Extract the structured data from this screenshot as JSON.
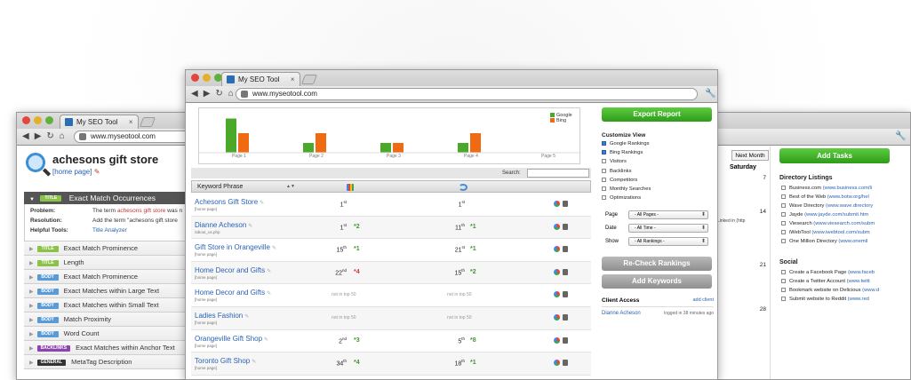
{
  "left_window": {
    "tab_title": "My SEO Tool",
    "url": "www.myseotool.com",
    "store_title": "achesons gift store",
    "store_link": "[home page]",
    "open_issue": {
      "badge": "TITLE",
      "title": "Exact Match Occurrences",
      "problem_label": "Problem:",
      "problem_pre": "The term ",
      "problem_term": "achesons gift store",
      "problem_post": " was n",
      "resolution_label": "Resolution:",
      "resolution": "Add the term \"achesons gift store",
      "tools_label": "Helpful Tools:",
      "tool": "Title Analyzer"
    },
    "issues": [
      {
        "badge": "TITLE",
        "type": "title",
        "label": "Exact Match Prominence"
      },
      {
        "badge": "TITLE",
        "type": "title",
        "label": "Length"
      },
      {
        "badge": "BODY",
        "type": "body",
        "label": "Exact Match Prominence"
      },
      {
        "badge": "BODY",
        "type": "body",
        "label": "Exact Matches within Large Text"
      },
      {
        "badge": "BODY",
        "type": "body",
        "label": "Exact Matches within Small Text"
      },
      {
        "badge": "BODY",
        "type": "body",
        "label": "Match Proximity"
      },
      {
        "badge": "BODY",
        "type": "body",
        "label": "Word Count"
      },
      {
        "badge": "BACKLINKS",
        "type": "back",
        "label": "Exact Matches within Anchor Text"
      },
      {
        "badge": "GENERAL",
        "type": "gen",
        "label": "MetaTag Description"
      }
    ]
  },
  "center_window": {
    "tab_title": "My SEO Tool",
    "url": "www.myseotool.com",
    "search_label": "Search:",
    "col_keyword": "Keyword Phrase",
    "rows": [
      {
        "name": "Achesons Gift Store",
        "sub": "[home page]",
        "g": "1",
        "gs": "st",
        "gc": "",
        "gd": "",
        "b": "1",
        "bs": "st",
        "bc": "",
        "bd": "",
        "nt": ""
      },
      {
        "name": "Dianne Acheson",
        "sub": "/about_us.php",
        "g": "1",
        "gs": "st",
        "gc": "*2",
        "gd": "up",
        "b": "11",
        "bs": "th",
        "bc": "*1",
        "bd": "up",
        "nt": ""
      },
      {
        "name": "Gift Store in Orangeville",
        "sub": "[home page]",
        "g": "15",
        "gs": "th",
        "gc": "*1",
        "gd": "up",
        "b": "21",
        "bs": "st",
        "bc": "*1",
        "bd": "up",
        "nt": ""
      },
      {
        "name": "Home Decor and Gifts",
        "sub": "[home page]",
        "g": "22",
        "gs": "nd",
        "gc": "*4",
        "gd": "dn",
        "b": "15",
        "bs": "th",
        "bc": "*2",
        "bd": "up",
        "nt": ""
      },
      {
        "name": "Home Decor and Gifts",
        "sub": "[home page]",
        "g": "",
        "gs": "",
        "gc": "",
        "gd": "",
        "b": "",
        "bs": "",
        "bc": "",
        "bd": "",
        "nt": "not in top 50"
      },
      {
        "name": "Ladies Fashion",
        "sub": "[home page]",
        "g": "",
        "gs": "",
        "gc": "",
        "gd": "",
        "b": "",
        "bs": "",
        "bc": "",
        "bd": "",
        "nt": "not in top 50"
      },
      {
        "name": "Orangeville Gift Shop",
        "sub": "[home page]",
        "g": "2",
        "gs": "nd",
        "gc": "*3",
        "gd": "up",
        "b": "5",
        "bs": "th",
        "bc": "*8",
        "bd": "up",
        "nt": ""
      },
      {
        "name": "Toronto Gift Shop",
        "sub": "[home page]",
        "g": "34",
        "gs": "th",
        "gc": "*4",
        "gd": "up",
        "b": "18",
        "bs": "th",
        "bc": "*1",
        "bd": "up",
        "nt": ""
      }
    ],
    "export_label": "Export Report",
    "customize_title": "Customize View",
    "options": [
      {
        "label": "Google Rankings",
        "checked": true
      },
      {
        "label": "Bing Rankings",
        "checked": true
      },
      {
        "label": "Visitors",
        "checked": false
      },
      {
        "label": "Backlinks",
        "checked": false
      },
      {
        "label": "Competitors",
        "checked": false
      },
      {
        "label": "Monthly Searches",
        "checked": false
      },
      {
        "label": "Optimizations",
        "checked": false
      }
    ],
    "filters": [
      {
        "label": "Page",
        "value": "- All Pages -"
      },
      {
        "label": "Date",
        "value": "- All Time -"
      },
      {
        "label": "Show",
        "value": "- All Rankings -"
      }
    ],
    "recheck_label": "Re-Check Rankings",
    "add_keywords_label": "Add Keywords",
    "client_access_title": "Client Access",
    "add_client": "add client",
    "client_name": "Dianne Acheson",
    "client_time": "logged in 38 minutes ago"
  },
  "right_window": {
    "next_month": "Next Month",
    "day_header": "Saturday",
    "day_numbers": [
      "7",
      "14",
      "21",
      "28"
    ],
    "linkedin_text": "Linked in (http",
    "add_tasks_label": "Add Tasks",
    "directory_title": "Directory Listings",
    "directory": [
      {
        "name": "Business.com ",
        "url": "(www.business.com/li"
      },
      {
        "name": "Best of the Web ",
        "url": "(www.botw.org/hel"
      },
      {
        "name": "Wave Directory ",
        "url": "(www.wave.directory"
      },
      {
        "name": "Jayde ",
        "url": "(www.jayde.com/submit.htm"
      },
      {
        "name": "Viesearch ",
        "url": "(www.viesearch.com/subm"
      },
      {
        "name": "iWebTool ",
        "url": "(www.iwebtool.com/subm"
      },
      {
        "name": "One Million Directory ",
        "url": "(www.onemil"
      }
    ],
    "social_title": "Social",
    "social": [
      {
        "name": "Create a Facebook Page ",
        "url": "(www.faceb"
      },
      {
        "name": "Create a Twitter Account ",
        "url": "(www.twitt"
      },
      {
        "name": "Bookmark website on Delicious ",
        "url": "(www.d"
      },
      {
        "name": "Submit website to Reddit ",
        "url": "(www.red"
      }
    ]
  },
  "chart_data": {
    "type": "bar",
    "categories": [
      "Page 1",
      "Page 2",
      "Page 3",
      "Page 4",
      "Page 5"
    ],
    "series": [
      {
        "name": "Google",
        "color": "#4aa82b",
        "values": [
          7,
          2,
          2,
          2,
          0
        ]
      },
      {
        "name": "Bing",
        "color": "#f06a12",
        "values": [
          4,
          4,
          2,
          4,
          0
        ]
      }
    ],
    "ylim": [
      0,
      8
    ]
  }
}
